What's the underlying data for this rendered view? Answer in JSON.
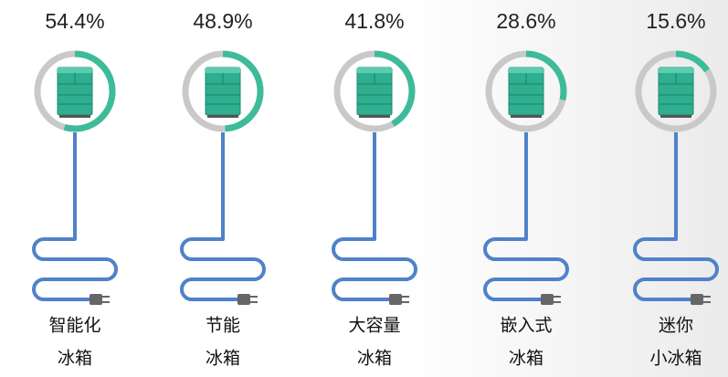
{
  "chart_data": {
    "type": "ring",
    "categories": [
      [
        "智能化",
        "冰箱"
      ],
      [
        "节能",
        "冰箱"
      ],
      [
        "大容量",
        "冰箱"
      ],
      [
        "嵌入式",
        "冰箱"
      ],
      [
        "迷你",
        "小冰箱"
      ]
    ],
    "values": [
      54.4,
      48.9,
      41.8,
      28.6,
      15.6
    ],
    "value_labels": [
      "54.4%",
      "48.9%",
      "41.8%",
      "28.6%",
      "15.6%"
    ],
    "ylim": [
      0,
      100
    ],
    "color": "#3dbb9b",
    "track_color": "#c9c9c9",
    "cable_color": "#4f82c9",
    "icon_color": "#2fae90"
  }
}
